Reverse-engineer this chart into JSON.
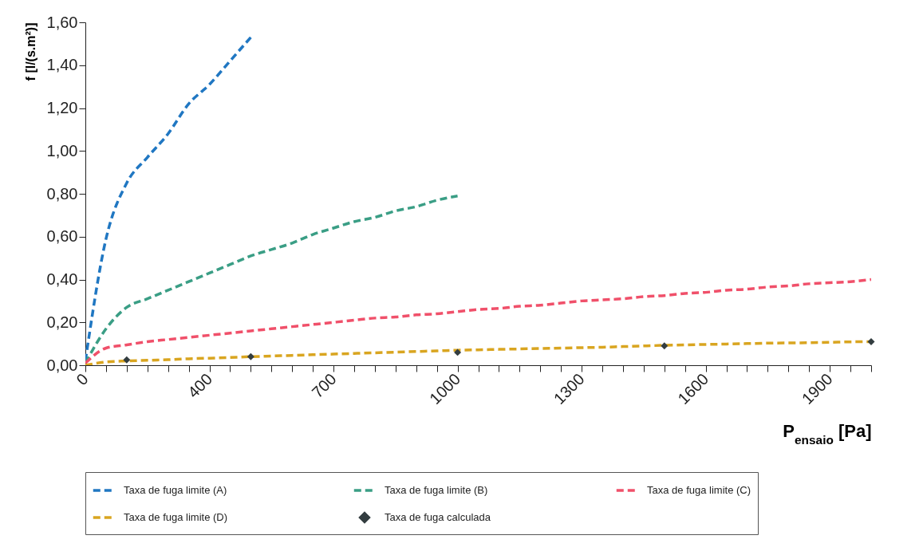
{
  "chart_data": {
    "type": "line",
    "xlabel": "P$_{ensaio}$ [Pa]",
    "ylabel": "f [l/(s.m²)]",
    "categories": [
      "0",
      null,
      null,
      null,
      null,
      null,
      "400",
      null,
      null,
      null,
      null,
      null,
      "700",
      null,
      null,
      null,
      null,
      null,
      "1000",
      null,
      null,
      null,
      null,
      null,
      "1300",
      null,
      null,
      null,
      null,
      null,
      "1600",
      null,
      null,
      null,
      null,
      null,
      "1900",
      null,
      null
    ],
    "ylim": [
      0,
      1.6
    ],
    "yticks": [
      {
        "value": 0,
        "label": "0,00"
      },
      {
        "value": 0.2,
        "label": "0,20"
      },
      {
        "value": 0.4,
        "label": "0,40"
      },
      {
        "value": 0.6,
        "label": "0,60"
      },
      {
        "value": 0.8,
        "label": "0,80"
      },
      {
        "value": 1,
        "label": "1,00"
      },
      {
        "value": 1.2,
        "label": "1,20"
      },
      {
        "value": 1.4,
        "label": "1,40"
      },
      {
        "value": 1.6,
        "label": "1,60"
      }
    ],
    "grid": false,
    "legend": "bottom",
    "line_style": "dashed",
    "series": [
      {
        "name": "Taxa de fuga limite (A)",
        "color": "#2077c2",
        "values": [
          0.02,
          0.59,
          0.85,
          0.97,
          1.08,
          1.22,
          1.31,
          1.42,
          1.53,
          null,
          null,
          null,
          null,
          null,
          null,
          null,
          null,
          null,
          null,
          null,
          null,
          null,
          null,
          null,
          null,
          null,
          null,
          null,
          null,
          null,
          null,
          null,
          null,
          null,
          null,
          null,
          null,
          null,
          null
        ]
      },
      {
        "name": "Taxa de fuga limite (B)",
        "color": "#3a9e85",
        "values": [
          0.01,
          0.17,
          0.27,
          0.31,
          0.35,
          0.39,
          0.43,
          0.47,
          0.51,
          0.54,
          0.57,
          0.61,
          0.64,
          0.67,
          0.69,
          0.72,
          0.74,
          0.77,
          0.79,
          null,
          null,
          null,
          null,
          null,
          null,
          null,
          null,
          null,
          null,
          null,
          null,
          null,
          null,
          null,
          null,
          null,
          null,
          null,
          null
        ]
      },
      {
        "name": "Taxa de fuga limite (C)",
        "color": "#f0506a",
        "values": [
          0.01,
          0.08,
          0.095,
          0.11,
          0.12,
          0.13,
          0.14,
          0.15,
          0.16,
          0.17,
          0.18,
          0.19,
          0.2,
          0.21,
          0.22,
          0.225,
          0.235,
          0.24,
          0.25,
          0.26,
          0.265,
          0.275,
          0.28,
          0.29,
          0.3,
          0.305,
          0.31,
          0.32,
          0.325,
          0.335,
          0.34,
          0.35,
          0.355,
          0.365,
          0.37,
          0.38,
          0.385,
          0.39,
          0.4
        ]
      },
      {
        "name": "Taxa de fuga limite (D)",
        "color": "#d9a520",
        "values": [
          0,
          0.015,
          0.02,
          0.023,
          0.026,
          0.03,
          0.033,
          0.036,
          0.04,
          0.043,
          0.046,
          0.049,
          0.052,
          0.055,
          0.058,
          0.061,
          0.064,
          0.067,
          0.07,
          0.072,
          0.074,
          0.076,
          0.078,
          0.08,
          0.082,
          0.084,
          0.087,
          0.09,
          0.093,
          0.095,
          0.097,
          0.099,
          0.101,
          0.103,
          0.104,
          0.105,
          0.107,
          0.109,
          0.11
        ]
      },
      {
        "name": "Taxa de fuga calculada",
        "type": "scatter",
        "marker": "diamond",
        "color": "#333d40",
        "values": [
          null,
          null,
          0.025,
          null,
          null,
          null,
          null,
          null,
          0.04,
          null,
          null,
          null,
          null,
          null,
          null,
          null,
          null,
          null,
          0.06,
          null,
          null,
          null,
          null,
          null,
          null,
          null,
          null,
          null,
          0.09,
          null,
          null,
          null,
          null,
          null,
          null,
          null,
          null,
          null,
          0.11
        ]
      }
    ]
  }
}
